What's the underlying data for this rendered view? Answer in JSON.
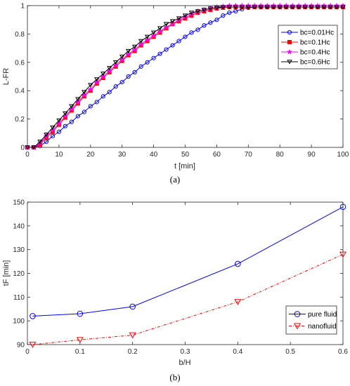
{
  "chart_data": [
    {
      "type": "line",
      "panel_label": "(a)",
      "xlabel": "t [min]",
      "ylabel": "L-FR",
      "xlim": [
        0,
        100
      ],
      "ylim": [
        0,
        1
      ],
      "xticks": [
        "0",
        "10",
        "20",
        "30",
        "40",
        "50",
        "60",
        "70",
        "80",
        "90",
        "100"
      ],
      "yticks": [
        "0",
        "0.2",
        "0.4",
        "0.6",
        "0.8",
        "1"
      ],
      "grid": false,
      "legend_position": "right",
      "series": [
        {
          "name": "bc=0.01Hc",
          "color": "#0000ff",
          "marker": "circle",
          "x": [
            0,
            2,
            4,
            6,
            8,
            10,
            12,
            14,
            16,
            18,
            20,
            22,
            24,
            26,
            28,
            30,
            32,
            34,
            36,
            38,
            40,
            42,
            44,
            46,
            48,
            50,
            52,
            54,
            56,
            58,
            60,
            62,
            64,
            66,
            68,
            70,
            72,
            74,
            76,
            78,
            80,
            82,
            84,
            86,
            88,
            90,
            92,
            94,
            96,
            98,
            100
          ],
          "y": [
            0,
            0,
            0.01,
            0.04,
            0.08,
            0.11,
            0.15,
            0.18,
            0.22,
            0.25,
            0.29,
            0.32,
            0.36,
            0.39,
            0.43,
            0.46,
            0.5,
            0.53,
            0.57,
            0.6,
            0.63,
            0.66,
            0.69,
            0.72,
            0.75,
            0.78,
            0.81,
            0.83,
            0.86,
            0.88,
            0.9,
            0.93,
            0.95,
            0.96,
            0.975,
            0.985,
            0.99,
            0.99,
            0.99,
            0.99,
            0.99,
            0.99,
            0.99,
            0.99,
            0.99,
            0.99,
            0.99,
            0.99,
            0.99,
            0.99,
            0.99
          ]
        },
        {
          "name": "bc=0.1Hc",
          "color": "#ff0000",
          "marker": "square",
          "x": [
            0,
            2,
            4,
            6,
            8,
            10,
            12,
            14,
            16,
            18,
            20,
            22,
            24,
            26,
            28,
            30,
            32,
            34,
            36,
            38,
            40,
            42,
            44,
            46,
            48,
            50,
            52,
            54,
            56,
            58,
            60,
            62,
            64,
            66,
            68,
            70,
            72,
            74,
            76,
            78,
            80,
            82,
            84,
            86,
            88,
            90,
            92,
            94,
            96,
            98,
            100
          ],
          "y": [
            0,
            0,
            0.02,
            0.07,
            0.11,
            0.16,
            0.21,
            0.26,
            0.31,
            0.36,
            0.4,
            0.45,
            0.49,
            0.53,
            0.57,
            0.61,
            0.65,
            0.68,
            0.72,
            0.75,
            0.78,
            0.81,
            0.84,
            0.87,
            0.89,
            0.91,
            0.93,
            0.95,
            0.96,
            0.97,
            0.98,
            0.985,
            0.99,
            0.99,
            0.99,
            0.99,
            0.99,
            0.99,
            0.99,
            0.99,
            0.99,
            0.99,
            0.99,
            0.99,
            0.99,
            0.99,
            0.99,
            0.99,
            0.99,
            0.99,
            0.99
          ]
        },
        {
          "name": "bc=0.4Hc",
          "color": "#ff00ff",
          "marker": "star",
          "x": [
            0,
            2,
            4,
            6,
            8,
            10,
            12,
            14,
            16,
            18,
            20,
            22,
            24,
            26,
            28,
            30,
            32,
            34,
            36,
            38,
            40,
            42,
            44,
            46,
            48,
            50,
            52,
            54,
            56,
            58,
            60,
            62,
            64,
            66,
            68,
            70,
            72,
            74,
            76,
            78,
            80,
            82,
            84,
            86,
            88,
            90,
            92,
            94,
            96,
            98,
            100
          ],
          "y": [
            0,
            0,
            0.03,
            0.08,
            0.12,
            0.17,
            0.22,
            0.27,
            0.32,
            0.37,
            0.41,
            0.46,
            0.5,
            0.54,
            0.58,
            0.62,
            0.66,
            0.69,
            0.73,
            0.76,
            0.79,
            0.82,
            0.85,
            0.87,
            0.9,
            0.92,
            0.94,
            0.96,
            0.97,
            0.98,
            0.99,
            0.995,
            1,
            1,
            1,
            1,
            1,
            1,
            1,
            1,
            1,
            1,
            1,
            1,
            1,
            1,
            1,
            1,
            1,
            1,
            1
          ]
        },
        {
          "name": "bc=0.6Hc",
          "color": "#000000",
          "marker": "triangle-down",
          "x": [
            0,
            2,
            4,
            6,
            8,
            10,
            12,
            14,
            16,
            18,
            20,
            22,
            24,
            26,
            28,
            30,
            32,
            34,
            36,
            38,
            40,
            42,
            44,
            46,
            48,
            50,
            52,
            54,
            56,
            58,
            60,
            62,
            64,
            66,
            68,
            70,
            72,
            74,
            76,
            78,
            80,
            82,
            84,
            86,
            88,
            90,
            92,
            94,
            96,
            98,
            100
          ],
          "y": [
            0,
            0,
            0.04,
            0.09,
            0.14,
            0.19,
            0.24,
            0.29,
            0.34,
            0.39,
            0.44,
            0.48,
            0.52,
            0.56,
            0.6,
            0.64,
            0.68,
            0.71,
            0.75,
            0.78,
            0.81,
            0.84,
            0.87,
            0.89,
            0.91,
            0.93,
            0.95,
            0.96,
            0.97,
            0.98,
            0.985,
            0.99,
            0.99,
            0.99,
            0.99,
            0.99,
            0.99,
            0.99,
            0.99,
            0.99,
            0.99,
            0.99,
            0.99,
            0.99,
            0.99,
            0.99,
            0.99,
            0.99,
            0.99,
            0.99,
            0.99
          ]
        }
      ]
    },
    {
      "type": "line",
      "panel_label": "(b)",
      "xlabel": "b/H",
      "ylabel": "tF [min]",
      "xlim": [
        0,
        0.6
      ],
      "ylim": [
        90,
        150
      ],
      "xticks": [
        "0",
        "0.1",
        "0.2",
        "0.3",
        "0.4",
        "0.5",
        "0.6"
      ],
      "yticks": [
        "90",
        "100",
        "110",
        "120",
        "130",
        "140",
        "150"
      ],
      "grid": false,
      "legend_position": "right",
      "series": [
        {
          "name": "pure fluid",
          "color": "#0000ff",
          "marker": "circle",
          "style": "solid",
          "x": [
            0.01,
            0.1,
            0.2,
            0.4,
            0.6
          ],
          "y": [
            102,
            103,
            106,
            124,
            148
          ]
        },
        {
          "name": "nanofluid",
          "color": "#ff0000",
          "marker": "triangle-down",
          "style": "dashdot",
          "x": [
            0.01,
            0.1,
            0.2,
            0.4,
            0.6
          ],
          "y": [
            90,
            92,
            94,
            108,
            128
          ]
        }
      ]
    }
  ]
}
